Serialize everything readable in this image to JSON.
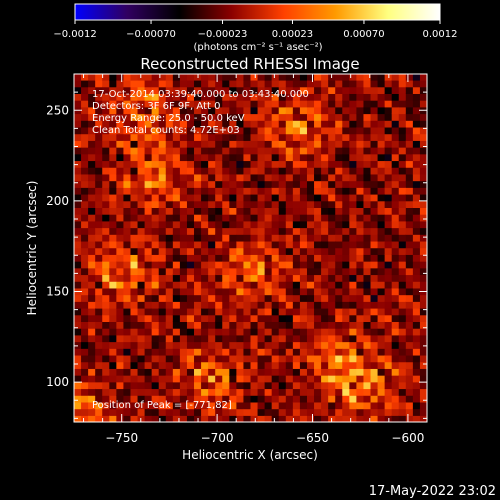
{
  "chart_data": {
    "type": "heatmap",
    "title": "Reconstructed RHESSI Image",
    "xlabel": "Heliocentric X (arcsec)",
    "ylabel": "Heliocentric Y (arcsec)",
    "xlim": [
      -775,
      -590
    ],
    "ylim": [
      78,
      270
    ],
    "xticks": [
      -750,
      -700,
      -650,
      -600
    ],
    "yticks": [
      100,
      150,
      200,
      250
    ],
    "xtick_labels": [
      "−750",
      "−700",
      "−650",
      "−600"
    ],
    "ytick_labels": [
      "100",
      "150",
      "200",
      "250"
    ],
    "colorbar": {
      "range": [
        -0.0012,
        0.0012
      ],
      "tick_values": [
        -0.0012,
        -0.0007,
        -0.00023,
        0.00023,
        0.0007,
        0.0012
      ],
      "tick_labels": [
        "−0.0012",
        "−0.00070",
        "−0.00023",
        "0.00023",
        "0.00070",
        "0.0012"
      ],
      "unit_label": "(photons cm⁻² s⁻¹ asec⁻²)",
      "colors": [
        "#0000ff",
        "#300060",
        "#000000",
        "#8b0000",
        "#ff4000",
        "#ff9a00",
        "#ffff80",
        "#ffffff"
      ]
    },
    "annotations": [
      "17-Oct-2014 03:39:40.000 to 03:43:40.000",
      "Detectors: 3F 6F 9F, Att 0",
      "Energy Range: 25.0 - 50.0 keV",
      "Clean    Total counts: 4.72E+03"
    ],
    "footer_note": "Position of Peak = [-771,82]",
    "peak": {
      "x": -771,
      "y": 82
    },
    "bright_sources": [
      {
        "x": -752,
        "y": 160
      },
      {
        "x": -740,
        "y": 250
      },
      {
        "x": -735,
        "y": 213
      },
      {
        "x": -683,
        "y": 160
      },
      {
        "x": -660,
        "y": 238
      },
      {
        "x": -640,
        "y": 110
      },
      {
        "x": -625,
        "y": 95
      },
      {
        "x": -705,
        "y": 100
      }
    ]
  },
  "timestamp": "17-May-2022 23:02"
}
